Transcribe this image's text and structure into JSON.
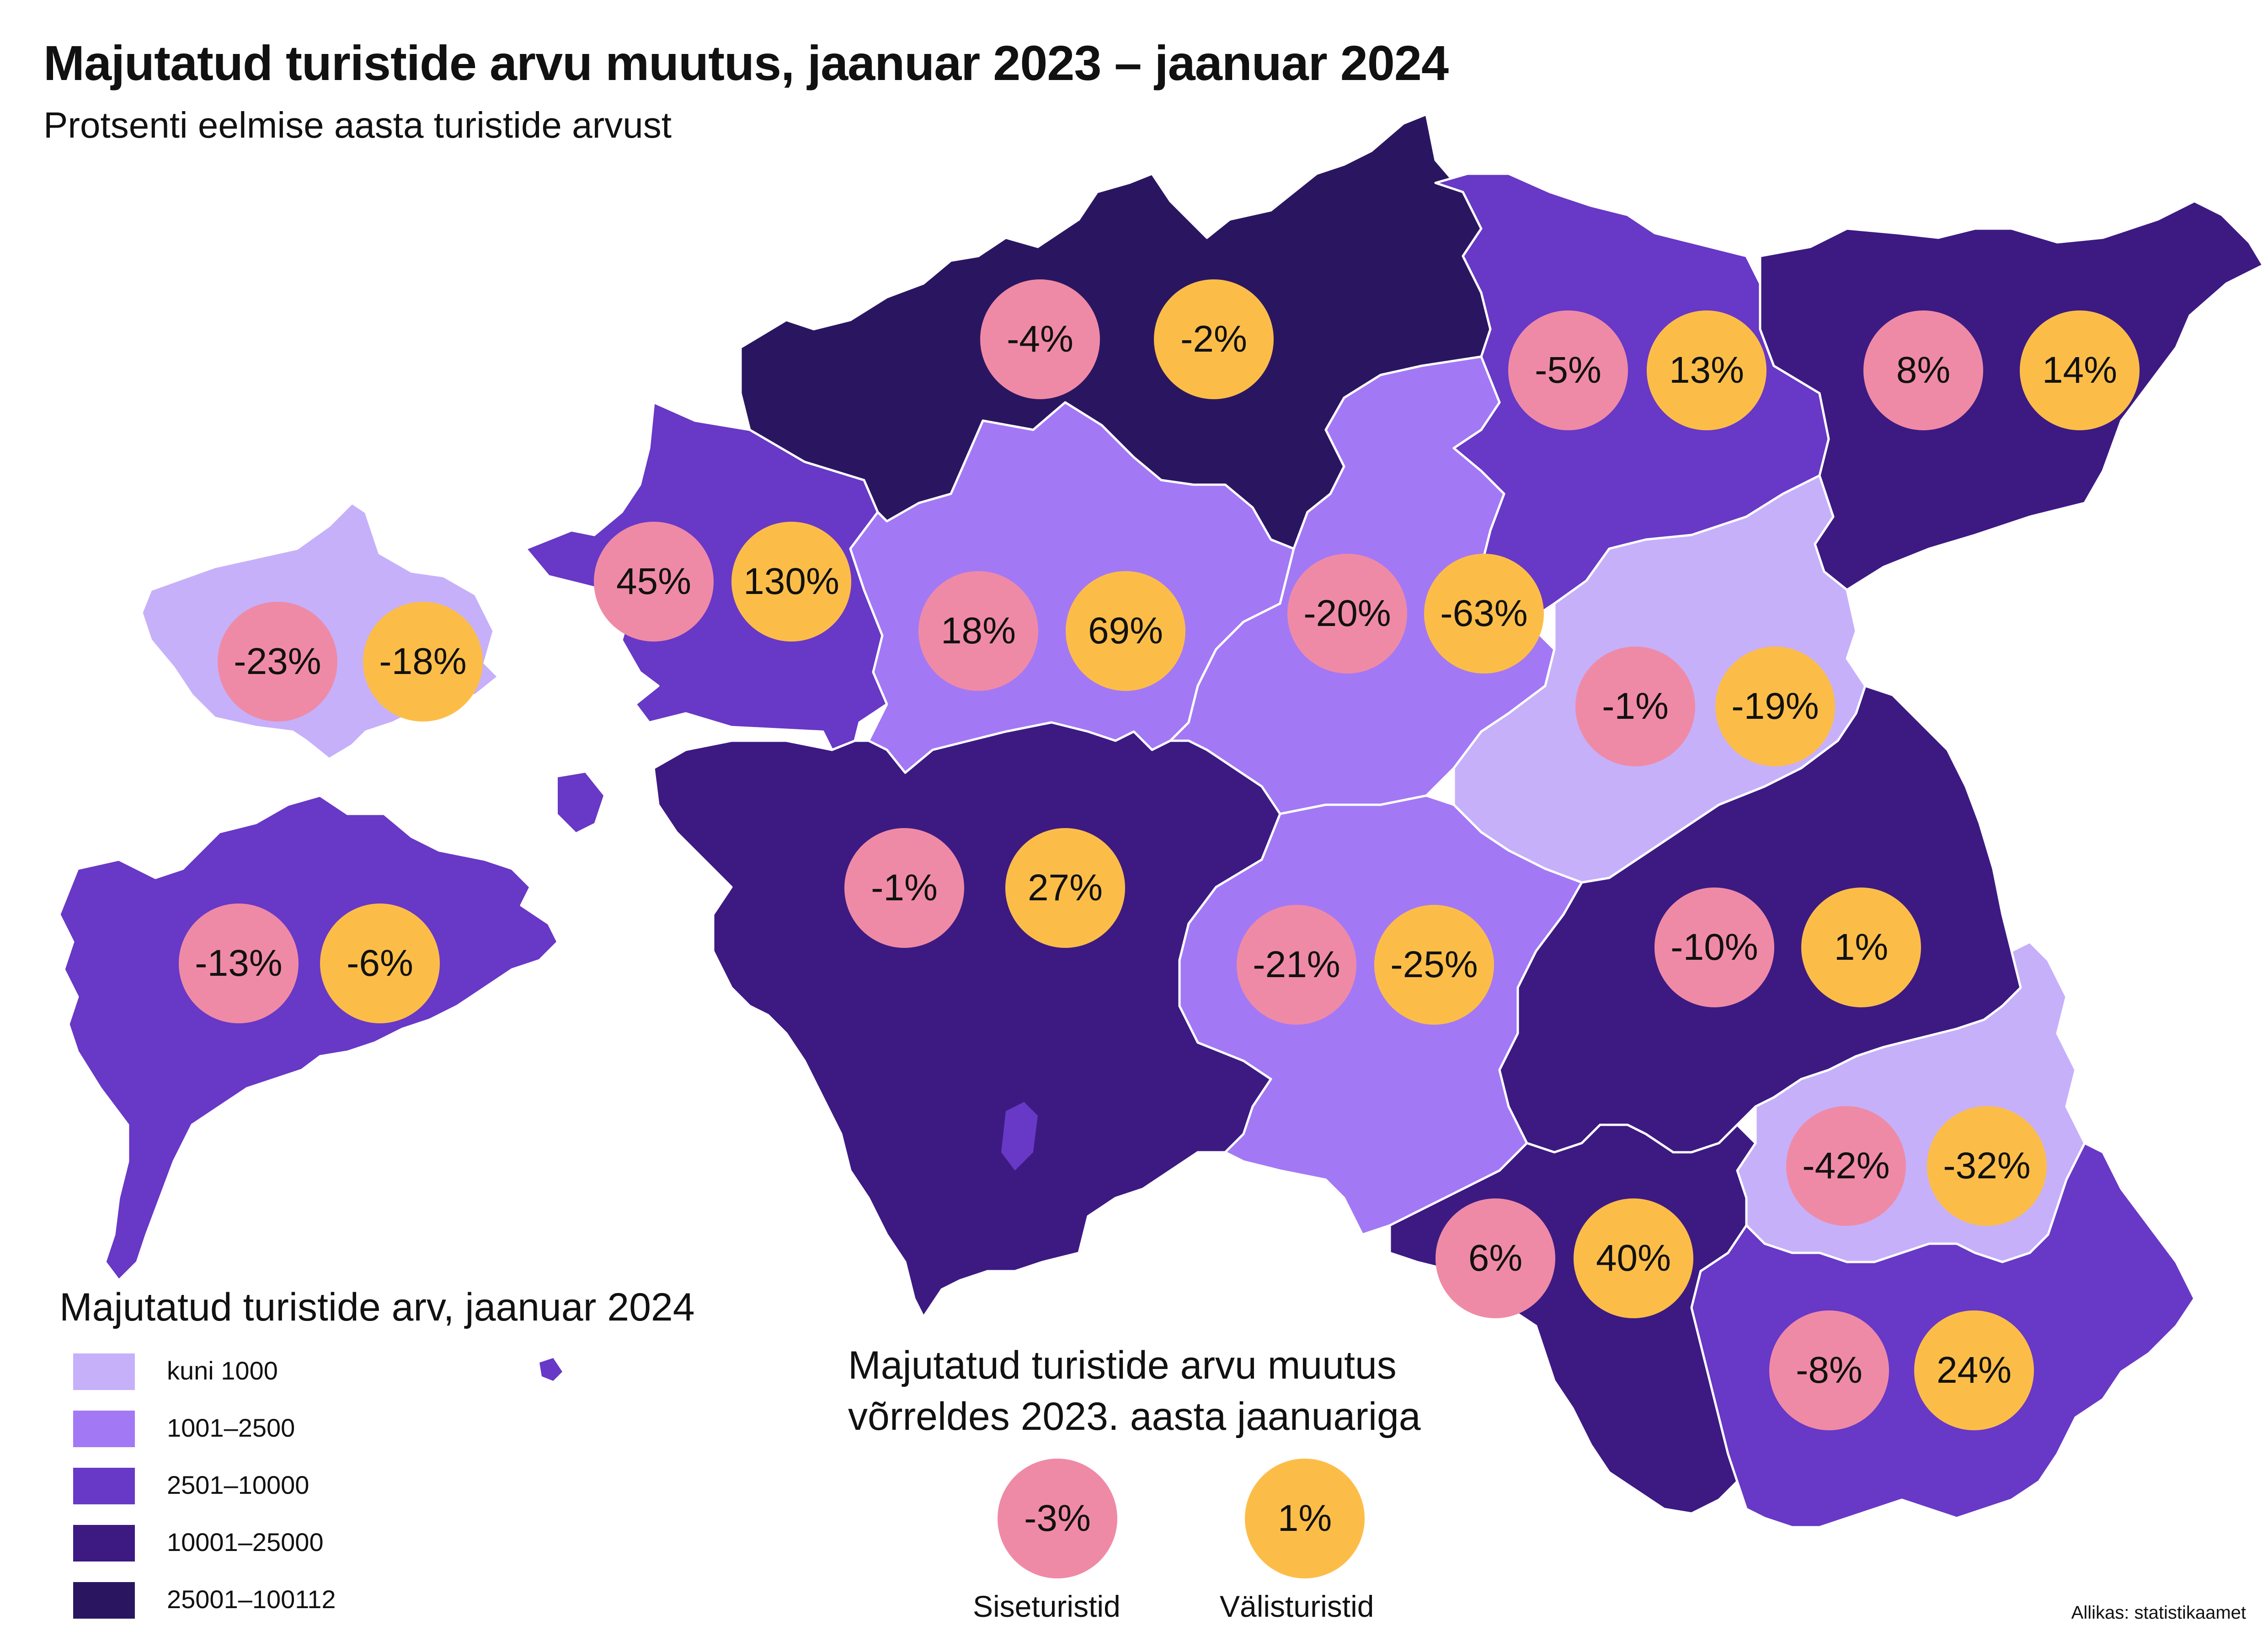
{
  "title": "Majutatud turistide arvu muutus, jaanuar 2023 –  jaanuar 2024",
  "subtitle": "Protsenti eelmise aasta turistide arvust",
  "colors": {
    "class1": "#c6b0fa",
    "class2": "#a378f5",
    "class3": "#6838c6",
    "class4": "#3c1a82",
    "class5": "#2a1660",
    "domestic": "#ef8aa6",
    "foreign": "#fcbd48"
  },
  "regions": [
    {
      "fill": "class1",
      "domestic": "-23%",
      "foreign": "-18%"
    },
    {
      "fill": "class3",
      "domestic": "45%",
      "foreign": "130%"
    },
    {
      "fill": "class5",
      "domestic": "-4%",
      "foreign": "-2%"
    },
    {
      "fill": "class3",
      "domestic": "-5%",
      "foreign": "13%"
    },
    {
      "fill": "class4",
      "domestic": "8%",
      "foreign": "14%"
    },
    {
      "fill": "class2",
      "domestic": "18%",
      "foreign": "69%"
    },
    {
      "fill": "class2",
      "domestic": "-20%",
      "foreign": "-63%"
    },
    {
      "fill": "class1",
      "domestic": "-1%",
      "foreign": "-19%"
    },
    {
      "fill": "class3",
      "domestic": "-13%",
      "foreign": "-6%"
    },
    {
      "fill": "class4",
      "domestic": "-1%",
      "foreign": "27%"
    },
    {
      "fill": "class2",
      "domestic": "-21%",
      "foreign": "-25%"
    },
    {
      "fill": "class4",
      "domestic": "-10%",
      "foreign": "1%"
    },
    {
      "fill": "class1",
      "domestic": "-42%",
      "foreign": "-32%"
    },
    {
      "fill": "class4",
      "domestic": "6%",
      "foreign": "40%"
    },
    {
      "fill": "class3",
      "domestic": "-8%",
      "foreign": "24%"
    }
  ],
  "legend": {
    "title": "Majutatud turistide arv, jaanuar 2024",
    "classes": [
      {
        "label": "kuni 1000",
        "color": "#c6b0fa"
      },
      {
        "label": "1001–2500",
        "color": "#a378f5"
      },
      {
        "label": "2501–10000",
        "color": "#6838c6"
      },
      {
        "label": "10001–25000",
        "color": "#3c1a82"
      },
      {
        "label": "25001–100112",
        "color": "#2a1660"
      }
    ]
  },
  "change_legend": {
    "title_line1": "Majutatud turistide arvu muutus",
    "title_line2": "võrreldes 2023. aasta jaanuariga",
    "domestic_value": "-3%",
    "foreign_value": "1%",
    "domestic_label": "Siseturistid",
    "foreign_label": "Välisturistid"
  },
  "source": "Allikas: statistikaamet"
}
